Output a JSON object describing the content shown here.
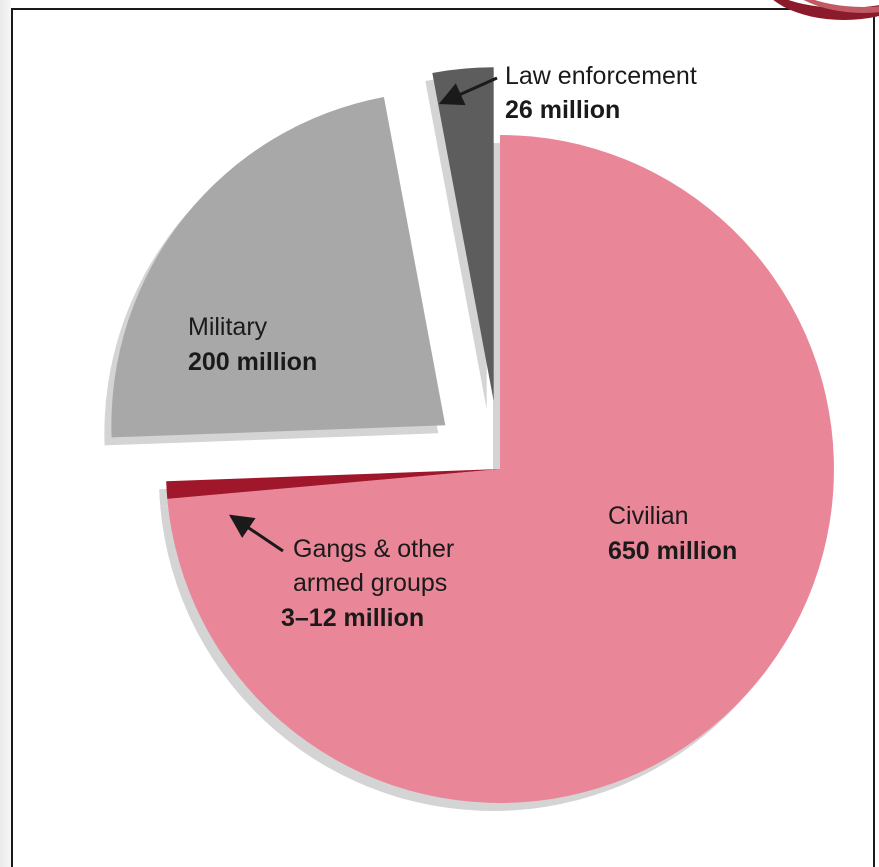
{
  "chart_data": {
    "type": "pie",
    "title": "",
    "slices": [
      {
        "label": "Civilian",
        "value_label": "650 million",
        "value": 650,
        "color": "#e98799"
      },
      {
        "label": "Gangs & other armed groups",
        "label_lines": [
          "Gangs & other",
          "armed groups"
        ],
        "value_label": "3–12 million",
        "value": 7.5,
        "color": "#a0172c"
      },
      {
        "label": "Military",
        "value_label": "200 million",
        "value": 200,
        "color": "#a8a8a8"
      },
      {
        "label": "Law enforcement",
        "value_label": "26 million",
        "value": 26,
        "color": "#5d5d5d"
      }
    ],
    "exploded": [
      "Military",
      "Law enforcement"
    ],
    "legend": "none"
  }
}
